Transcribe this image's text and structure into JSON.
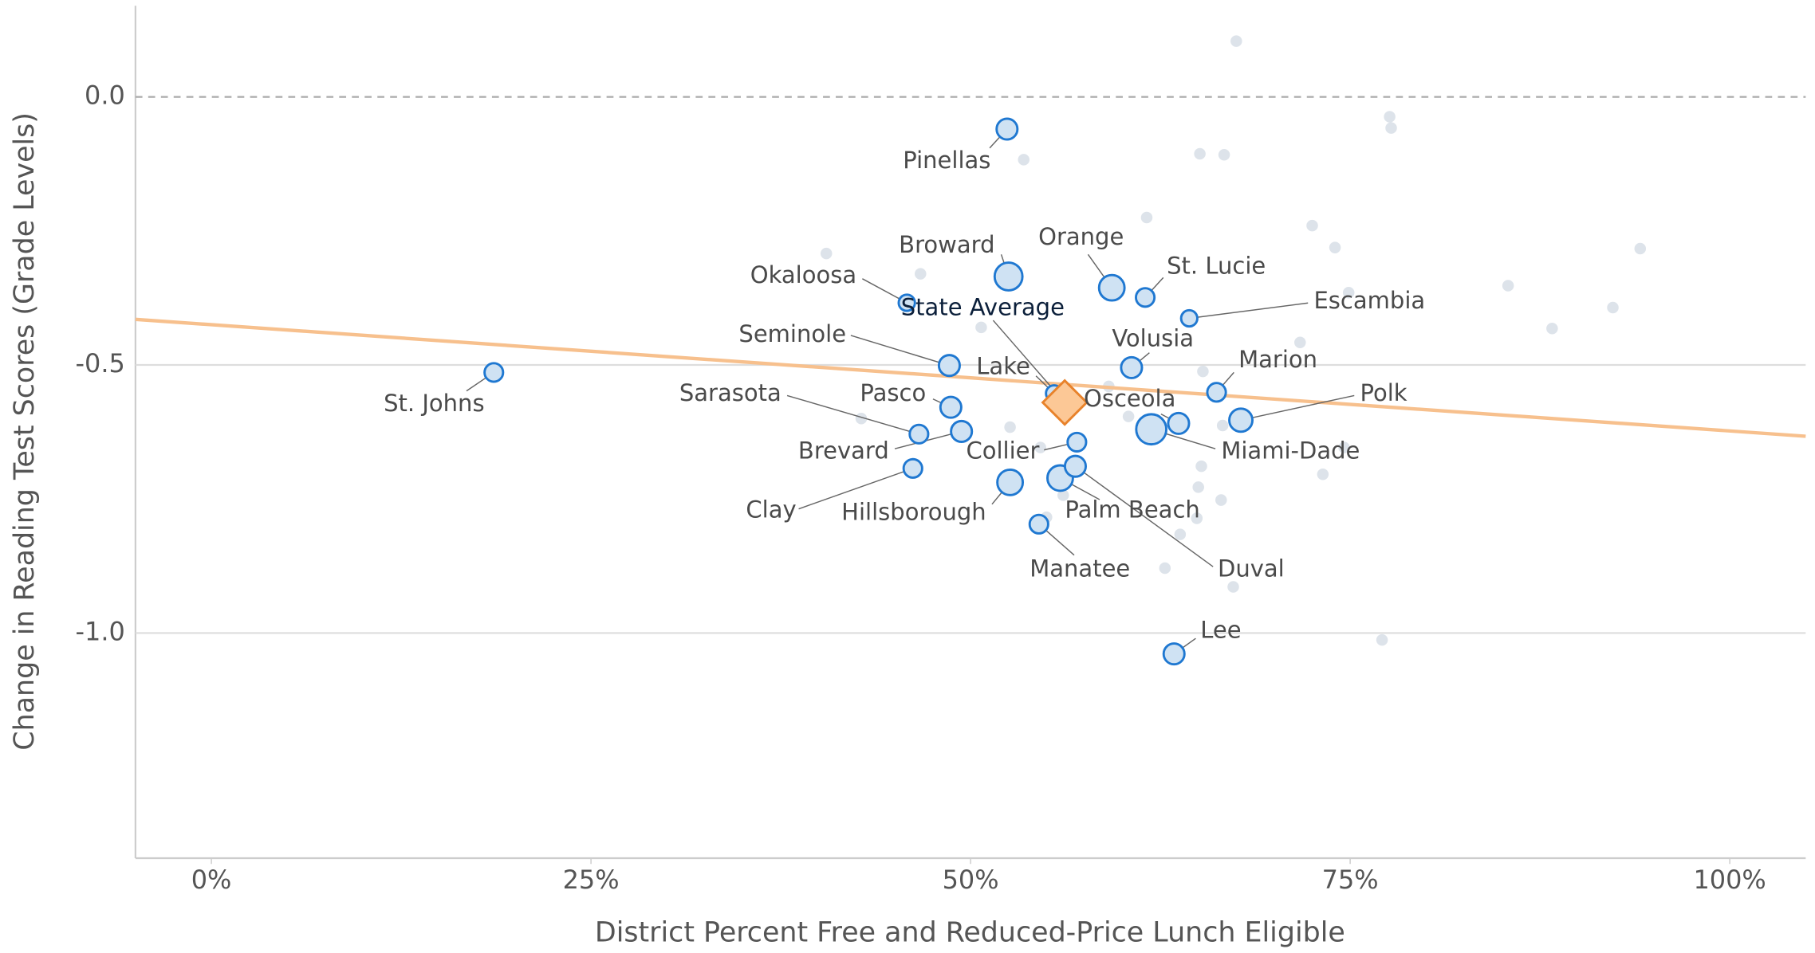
{
  "chart_data": {
    "type": "scatter",
    "xlabel": "District Percent Free and Reduced-Price Lunch Eligible",
    "ylabel": "Change in Reading Test Scores (Grade Levels)",
    "xlim": [
      -5,
      105
    ],
    "ylim": [
      -1.42,
      0.17
    ],
    "xticks": [
      {
        "value": 0,
        "label": "0%"
      },
      {
        "value": 25,
        "label": "25%"
      },
      {
        "value": 50,
        "label": "50%"
      },
      {
        "value": 75,
        "label": "75%"
      },
      {
        "value": 100,
        "label": "100%"
      }
    ],
    "yticks": [
      {
        "value": 0,
        "label": "0.0"
      },
      -0.5,
      {
        "value": -1,
        "label": "-1.0"
      }
    ],
    "zero_line": "dashed",
    "grid": true,
    "other_districts": {
      "color": "#dde3ea",
      "size": 5,
      "x": [
        67.5,
        77.6,
        77.7,
        53.5,
        65.1,
        66.7,
        61.6,
        72.5,
        40.5,
        74.0,
        46.7,
        94.1,
        74.9,
        85.4,
        92.3,
        88.3,
        71.7,
        50.7,
        65.3,
        59.1,
        60.4,
        66.6,
        42.8,
        52.6,
        54.6,
        74.6,
        65.2,
        73.2,
        65.0,
        66.5,
        56.1,
        55.0,
        64.9,
        63.8,
        62.8,
        67.3,
        77.1
      ],
      "y": [
        0.104,
        -0.037,
        -0.058,
        -0.117,
        -0.106,
        -0.108,
        -0.225,
        -0.24,
        -0.292,
        -0.281,
        -0.33,
        -0.283,
        -0.365,
        -0.352,
        -0.393,
        -0.432,
        -0.458,
        -0.43,
        -0.512,
        -0.54,
        -0.596,
        -0.613,
        -0.6,
        -0.616,
        -0.654,
        -0.654,
        -0.689,
        -0.704,
        -0.728,
        -0.752,
        -0.743,
        -0.784,
        -0.786,
        -0.816,
        -0.879,
        -0.914,
        -1.013
      ]
    },
    "districts": {
      "color": "#1f78d1",
      "fill": "#cfe2f3",
      "labels": [
        "Pinellas",
        "Broward",
        "Okaloosa",
        "Orange",
        "St. Lucie",
        "Escambia",
        "Seminole",
        "Volusia",
        "Marion",
        "Lake",
        "Osceola",
        "Polk",
        "Miami-Dade",
        "Pasco",
        "Sarasota",
        "Brevard",
        "Collier",
        "Clay",
        "Palm Beach",
        "Duval",
        "Hillsborough",
        "Manatee",
        "Lee",
        "St. Johns"
      ],
      "x": [
        52.4,
        52.5,
        45.8,
        59.3,
        61.5,
        64.4,
        48.6,
        60.6,
        66.2,
        55.5,
        63.7,
        67.8,
        61.9,
        48.7,
        46.6,
        49.4,
        57.0,
        46.2,
        55.9,
        56.9,
        52.6,
        54.5,
        63.4,
        18.6
      ],
      "y": [
        -0.06,
        -0.335,
        -0.384,
        -0.356,
        -0.374,
        -0.413,
        -0.501,
        -0.505,
        -0.551,
        -0.553,
        -0.609,
        -0.603,
        -0.62,
        -0.579,
        -0.629,
        -0.624,
        -0.644,
        -0.693,
        -0.711,
        -0.689,
        -0.719,
        -0.797,
        -1.039,
        -0.514
      ],
      "sizes": [
        9,
        12,
        7,
        11,
        8,
        7,
        9,
        9,
        8,
        7,
        9,
        10,
        13,
        9,
        8,
        9,
        8,
        8,
        11,
        9,
        11,
        8,
        9,
        8
      ]
    },
    "state_average": {
      "label": "State Average",
      "x": 56.2,
      "y": -0.57,
      "color": "#e8822a",
      "fill": "#fcc896"
    },
    "trend_line": {
      "color": "#f7c08d",
      "x": [
        -5,
        105
      ],
      "y": [
        -0.415,
        -0.633
      ]
    }
  }
}
